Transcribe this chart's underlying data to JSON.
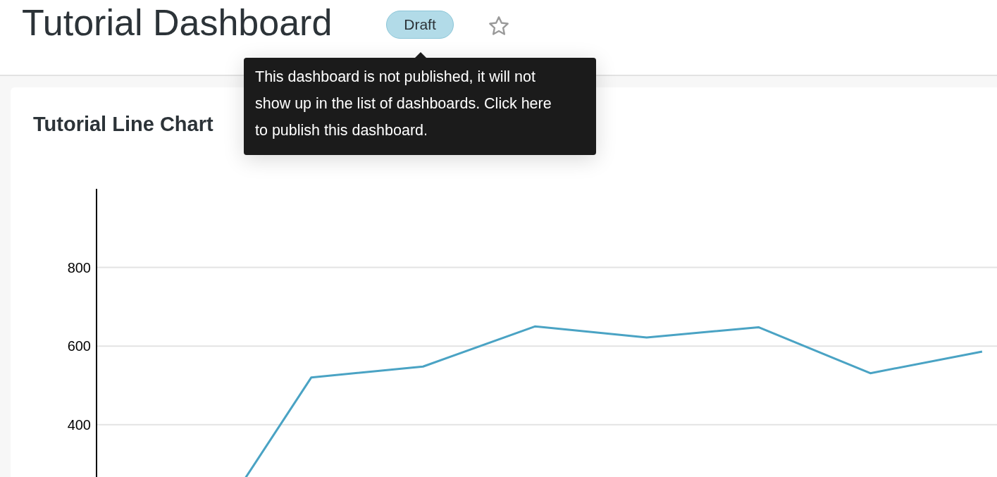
{
  "chart_data": {
    "type": "line",
    "title": "Tutorial Line Chart",
    "annotations": [
      "Tutorial Dashboard",
      "Draft",
      "This dashboard is not published, it will not show up in the list of dashboards. Click here to publish this dashboard."
    ],
    "categories": [
      null,
      null,
      null,
      null,
      null,
      null,
      null,
      null
    ],
    "series": [
      {
        "color": "#4aa3c4",
        "values": [
          86,
          520,
          548,
          650,
          622,
          648,
          531,
          586
        ]
      }
    ],
    "ylim": [
      0,
      1000
    ],
    "yticks": [
      400,
      600,
      800
    ],
    "grid": true,
    "marker": "none",
    "line_style": "solid",
    "tick_labels": "y"
  }
}
